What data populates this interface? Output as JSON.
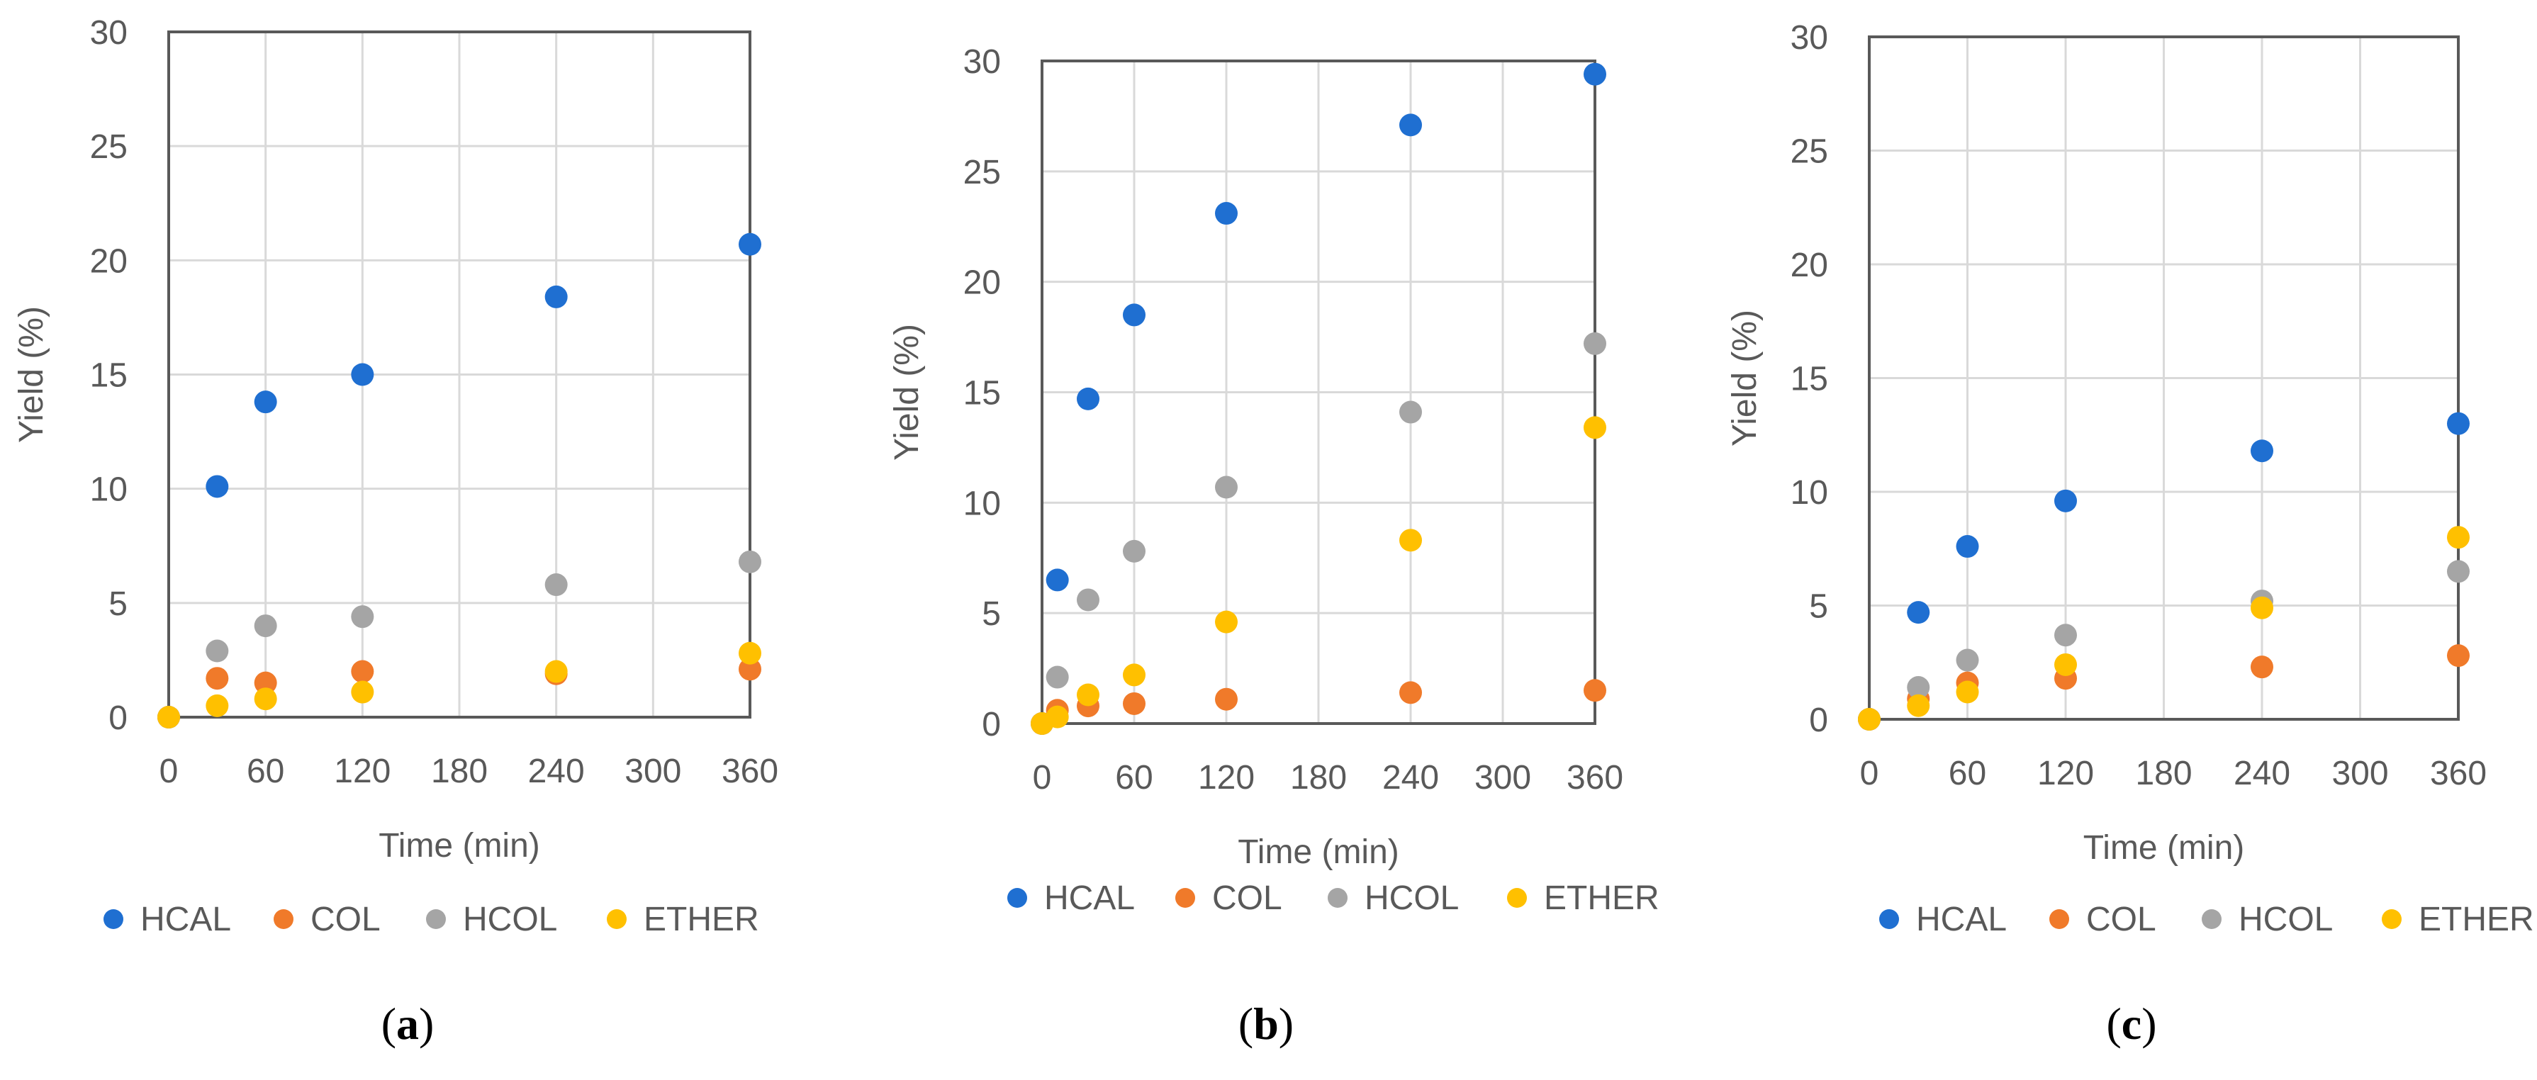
{
  "colors": {
    "HCAL": "#1f6fd1",
    "COL": "#f07a2a",
    "HCOL": "#a5a5a5",
    "ETHER": "#ffc000",
    "grid": "#d9d9d9",
    "frame": "#595959",
    "tick_text": "#595959"
  },
  "chart_data": [
    {
      "type": "scatter",
      "caption": {
        "open": "(",
        "letter": "a",
        "close": ")"
      },
      "xlabel": "Time (min)",
      "ylabel": "Yield (%)",
      "xlim": [
        0,
        360
      ],
      "ylim": [
        0,
        30
      ],
      "xticks": [
        "0",
        "60",
        "120",
        "180",
        "240",
        "300",
        "360"
      ],
      "yticks": [
        "0",
        "5",
        "10",
        "15",
        "20",
        "25",
        "30"
      ],
      "legend": [
        "HCAL",
        "COL",
        "HCOL",
        "ETHER"
      ],
      "series": [
        {
          "name": "HCAL",
          "x": [
            0,
            30,
            60,
            120,
            240,
            360
          ],
          "y": [
            0,
            10.1,
            13.8,
            15.0,
            18.4,
            20.7
          ]
        },
        {
          "name": "COL",
          "x": [
            0,
            30,
            60,
            120,
            240,
            360
          ],
          "y": [
            0,
            1.7,
            1.5,
            2.0,
            1.9,
            2.1
          ]
        },
        {
          "name": "HCOL",
          "x": [
            0,
            30,
            60,
            120,
            240,
            360
          ],
          "y": [
            0,
            2.9,
            4.0,
            4.4,
            5.8,
            6.8
          ]
        },
        {
          "name": "ETHER",
          "x": [
            0,
            30,
            60,
            120,
            240,
            360
          ],
          "y": [
            0,
            0.5,
            0.8,
            1.1,
            2.0,
            2.8
          ]
        }
      ]
    },
    {
      "type": "scatter",
      "caption": {
        "open": "(",
        "letter": "b",
        "close": ")"
      },
      "xlabel": "Time (min)",
      "ylabel": "Yield (%)",
      "xlim": [
        0,
        360
      ],
      "ylim": [
        0,
        30
      ],
      "xticks": [
        "0",
        "60",
        "120",
        "180",
        "240",
        "300",
        "360"
      ],
      "yticks": [
        "0",
        "5",
        "10",
        "15",
        "20",
        "25",
        "30"
      ],
      "legend": [
        "HCAL",
        "COL",
        "HCOL",
        "ETHER"
      ],
      "series": [
        {
          "name": "HCAL",
          "x": [
            0,
            10,
            30,
            60,
            120,
            240,
            360
          ],
          "y": [
            0,
            6.5,
            14.7,
            18.5,
            23.1,
            27.1,
            29.4
          ]
        },
        {
          "name": "COL",
          "x": [
            0,
            10,
            30,
            60,
            120,
            240,
            360
          ],
          "y": [
            0,
            0.6,
            0.8,
            0.9,
            1.1,
            1.4,
            1.5
          ]
        },
        {
          "name": "HCOL",
          "x": [
            0,
            10,
            30,
            60,
            120,
            240,
            360
          ],
          "y": [
            0,
            2.1,
            5.6,
            7.8,
            10.7,
            14.1,
            17.2
          ]
        },
        {
          "name": "ETHER",
          "x": [
            0,
            10,
            30,
            60,
            120,
            240,
            360
          ],
          "y": [
            0,
            0.3,
            1.3,
            2.2,
            4.6,
            8.3,
            13.4
          ]
        }
      ]
    },
    {
      "type": "scatter",
      "caption": {
        "open": "(",
        "letter": "c",
        "close": ")"
      },
      "xlabel": "Time (min)",
      "ylabel": "Yield (%)",
      "xlim": [
        0,
        360
      ],
      "ylim": [
        0,
        30
      ],
      "xticks": [
        "0",
        "60",
        "120",
        "180",
        "240",
        "300",
        "360"
      ],
      "yticks": [
        "0",
        "5",
        "10",
        "15",
        "20",
        "25",
        "30"
      ],
      "legend": [
        "HCAL",
        "COL",
        "HCOL",
        "ETHER"
      ],
      "series": [
        {
          "name": "HCAL",
          "x": [
            0,
            30,
            60,
            120,
            240,
            360
          ],
          "y": [
            0,
            4.7,
            7.6,
            9.6,
            11.8,
            13.0
          ]
        },
        {
          "name": "COL",
          "x": [
            0,
            30,
            60,
            120,
            240,
            360
          ],
          "y": [
            0,
            0.9,
            1.6,
            1.8,
            2.3,
            2.8
          ]
        },
        {
          "name": "HCOL",
          "x": [
            0,
            30,
            60,
            120,
            240,
            360
          ],
          "y": [
            0,
            1.4,
            2.6,
            3.7,
            5.2,
            6.5
          ]
        },
        {
          "name": "ETHER",
          "x": [
            0,
            30,
            60,
            120,
            240,
            360
          ],
          "y": [
            0,
            0.6,
            1.2,
            2.4,
            4.9,
            8.0
          ]
        }
      ]
    }
  ]
}
